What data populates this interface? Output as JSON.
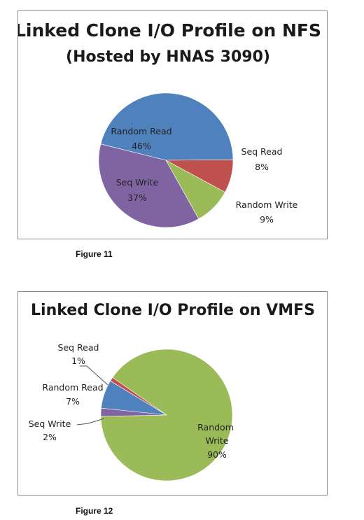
{
  "chart_data": [
    {
      "type": "pie",
      "title": "Linked Clone I/O Profile on NFS",
      "subtitle": "(Hosted by HNAS 3090)",
      "grid": false,
      "slices": [
        {
          "name": "Random Read",
          "value": 46,
          "pct_label": "46%",
          "color": "#4f81bd"
        },
        {
          "name": "Seq Read",
          "value": 8,
          "pct_label": "8%",
          "color": "#c0504d"
        },
        {
          "name": "Random Write",
          "value": 9,
          "pct_label": "9%",
          "color": "#9bbb59"
        },
        {
          "name": "Seq Write",
          "value": 37,
          "pct_label": "37%",
          "color": "#8064a2"
        }
      ]
    },
    {
      "type": "pie",
      "title": "Linked Clone I/O Profile on VMFS",
      "grid": false,
      "slices": [
        {
          "name": "Random Read",
          "value": 7,
          "pct_label": "7%",
          "color": "#4f81bd"
        },
        {
          "name": "Seq Read",
          "value": 1,
          "pct_label": "1%",
          "color": "#c0504d"
        },
        {
          "name": "Random Write",
          "value": 90,
          "pct_label": "90%",
          "color": "#9bbb59"
        },
        {
          "name": "Seq Write",
          "value": 2,
          "pct_label": "2%",
          "color": "#8064a2"
        }
      ]
    }
  ],
  "captions": {
    "figure1": "Figure 11",
    "figure2": "Figure 12"
  }
}
